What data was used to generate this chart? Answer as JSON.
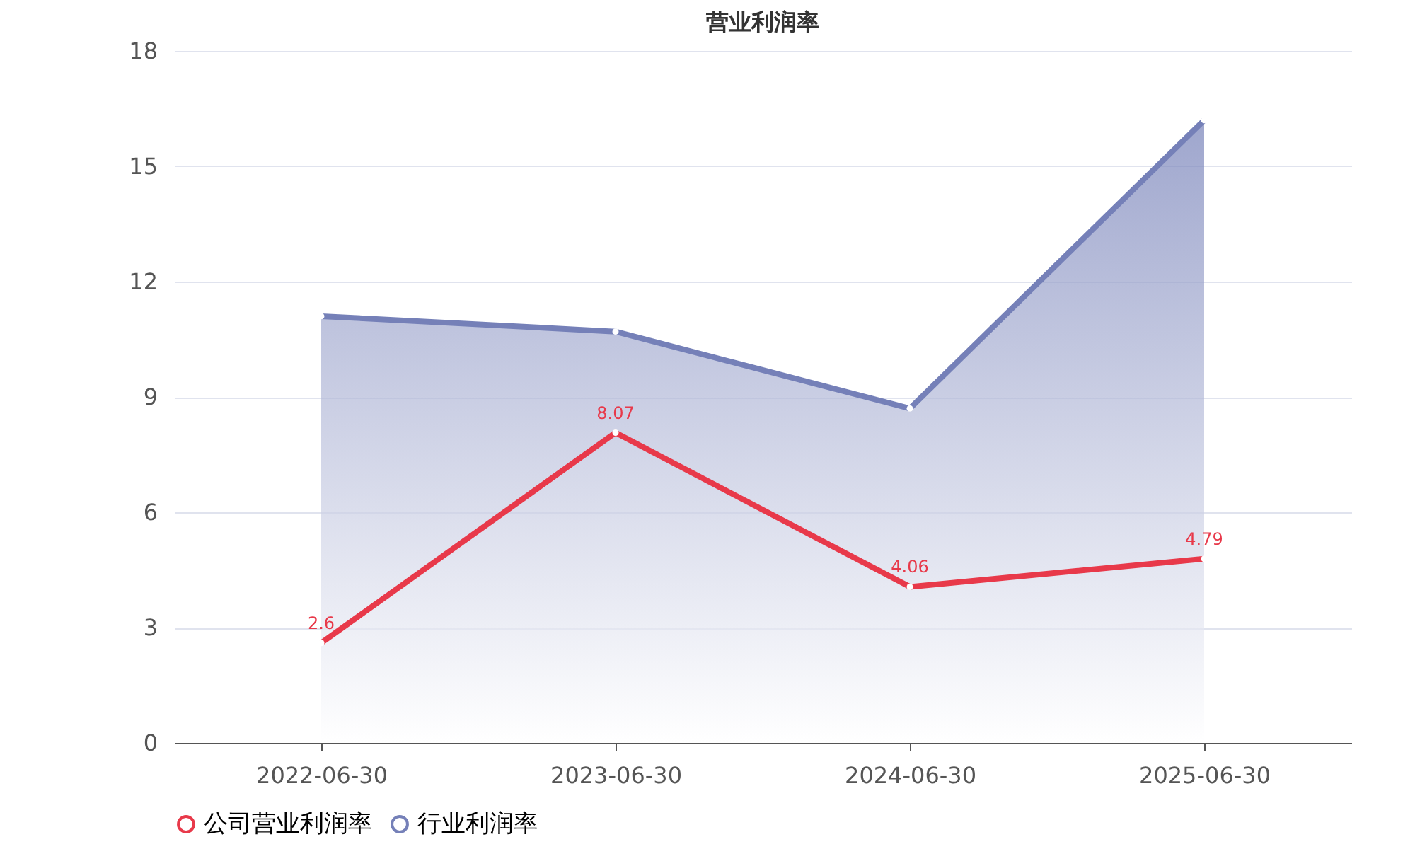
{
  "chart_data": {
    "type": "line",
    "title": "营业利润率",
    "categories": [
      "2022-06-30",
      "2023-06-30",
      "2024-06-30",
      "2025-06-30"
    ],
    "series": [
      {
        "name": "公司营业利润率",
        "color": "#e8394a",
        "values": [
          2.6,
          8.07,
          4.06,
          4.79
        ],
        "value_labels": [
          "2.6",
          "8.07",
          "4.06",
          "4.79"
        ]
      },
      {
        "name": "行业利润率",
        "type": "area",
        "color": "#7580b8",
        "values": [
          11.1,
          10.7,
          8.7,
          16.2
        ]
      }
    ],
    "ylim": [
      0,
      18
    ],
    "yticks": [
      0,
      3,
      6,
      9,
      12,
      15,
      18
    ],
    "grid": "y",
    "legend": "bottom",
    "marker": "circle"
  }
}
